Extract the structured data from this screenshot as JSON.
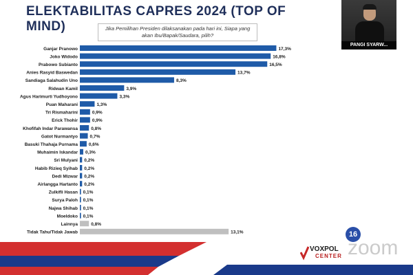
{
  "header": {
    "title": "ELEKTABILITAS CAPRES 2024 (TOP OF MIND)",
    "question": "Jika Pemilihan Presiden dilaksanakan pada hari ini, Siapa yang akan Ibu/Bapak/Saudara, pilih?"
  },
  "webcam": {
    "name": "PANGI SYARW..."
  },
  "footer": {
    "page_number": "16",
    "logo_line1": "VOXPOL",
    "logo_line2": "CENTER",
    "watermark": "zoom"
  },
  "colors": {
    "bar_primary": "#1f5ba8",
    "bar_other": "#bfbfbf",
    "title": "#1f2f5a",
    "footer_red": "#d32f2f",
    "footer_blue": "#1a3a8a"
  },
  "chart_data": {
    "type": "bar",
    "orientation": "horizontal",
    "title": "ELEKTABILITAS CAPRES 2024 (TOP OF MIND)",
    "xlabel": "",
    "ylabel": "",
    "xlim": [
      0,
      18
    ],
    "grid": false,
    "categories": [
      "Ganjar Pranowo",
      "Joko Widodo",
      "Prabowo Subianto",
      "Anies Rasyid Baswedan",
      "Sandiaga Salahudin Uno",
      "Ridwan Kamil",
      "Agus Harimurti Yudhoyono",
      "Puan Maharani",
      "Tri Rismaharini",
      "Erick Thohir",
      "Khofifah Indar Parawansa",
      "Gatot Nurmantyo",
      "Basuki Thahaja Purnama",
      "Muhaimin Iskandar",
      "Sri Mulyani",
      "Habib Rizieq Syihab",
      "Dedi Mizwar",
      "Airlangga Hartanto",
      "Zulkifli Hasan",
      "Surya Paloh",
      "Najwa Shihab",
      "Moeldoko",
      "Lainnya",
      "Tidak Tahu/Tidak Jawab"
    ],
    "values": [
      17.3,
      16.8,
      16.5,
      13.7,
      8.3,
      3.9,
      3.3,
      1.3,
      0.9,
      0.9,
      0.8,
      0.7,
      0.6,
      0.3,
      0.2,
      0.2,
      0.2,
      0.2,
      0.1,
      0.1,
      0.1,
      0.1,
      0.8,
      13.1
    ],
    "value_labels": [
      "17,3%",
      "16,8%",
      "16,5%",
      "13,7%",
      "8,3%",
      "3,9%",
      "3,3%",
      "1,3%",
      "0,9%",
      "0,9%",
      "0,8%",
      "0,7%",
      "0,6%",
      "0,3%",
      "0,2%",
      "0,2%",
      "0,2%",
      "0,2%",
      "0,1%",
      "0,1%",
      "0,1%",
      "0,1%",
      "0,8%",
      "13,1%"
    ],
    "gray_categories": [
      "Lainnya",
      "Tidak Tahu/Tidak Jawab"
    ]
  }
}
